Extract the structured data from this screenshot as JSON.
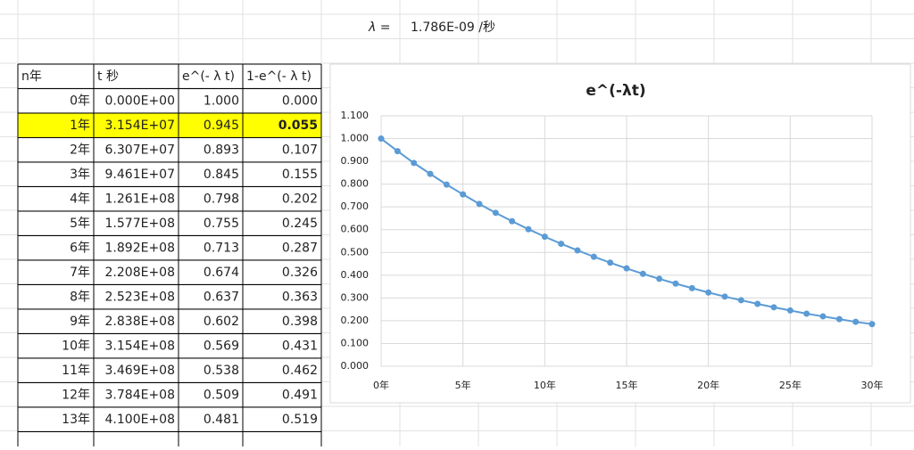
{
  "cells": {
    "lambda_label": "λ =",
    "lambda_value": "1.786E-09 /秒"
  },
  "table": {
    "columns": [
      "n年",
      "t 秒",
      "e^(- λ t)",
      "1-e^(- λ t)"
    ],
    "highlight_row": 1,
    "rows": [
      [
        "0年",
        "0.000E+00",
        "1.000",
        "0.000"
      ],
      [
        "1年",
        "3.154E+07",
        "0.945",
        "0.055"
      ],
      [
        "2年",
        "6.307E+07",
        "0.893",
        "0.107"
      ],
      [
        "3年",
        "9.461E+07",
        "0.845",
        "0.155"
      ],
      [
        "4年",
        "1.261E+08",
        "0.798",
        "0.202"
      ],
      [
        "5年",
        "1.577E+08",
        "0.755",
        "0.245"
      ],
      [
        "6年",
        "1.892E+08",
        "0.713",
        "0.287"
      ],
      [
        "7年",
        "2.208E+08",
        "0.674",
        "0.326"
      ],
      [
        "8年",
        "2.523E+08",
        "0.637",
        "0.363"
      ],
      [
        "9年",
        "2.838E+08",
        "0.602",
        "0.398"
      ],
      [
        "10年",
        "3.154E+08",
        "0.569",
        "0.431"
      ],
      [
        "11年",
        "3.469E+08",
        "0.538",
        "0.462"
      ],
      [
        "12年",
        "3.784E+08",
        "0.509",
        "0.491"
      ],
      [
        "13年",
        "4.100E+08",
        "0.481",
        "0.519"
      ]
    ]
  },
  "chart_data": {
    "type": "line",
    "title": "e^(-λt)",
    "color": "#5b9bd5",
    "grid": true,
    "x": [
      0,
      1,
      2,
      3,
      4,
      5,
      6,
      7,
      8,
      9,
      10,
      11,
      12,
      13,
      14,
      15,
      16,
      17,
      18,
      19,
      20,
      21,
      22,
      23,
      24,
      25,
      26,
      27,
      28,
      29,
      30
    ],
    "values": [
      1.0,
      0.945,
      0.893,
      0.845,
      0.798,
      0.755,
      0.713,
      0.674,
      0.637,
      0.602,
      0.569,
      0.538,
      0.509,
      0.481,
      0.455,
      0.43,
      0.406,
      0.384,
      0.363,
      0.343,
      0.324,
      0.306,
      0.29,
      0.274,
      0.259,
      0.245,
      0.231,
      0.219,
      0.207,
      0.195,
      0.185
    ],
    "xlim": [
      0,
      30
    ],
    "xticks": [
      {
        "value": 0,
        "label": "0年"
      },
      {
        "value": 5,
        "label": "5年"
      },
      {
        "value": 10,
        "label": "10年"
      },
      {
        "value": 15,
        "label": "15年"
      },
      {
        "value": 20,
        "label": "20年"
      },
      {
        "value": 25,
        "label": "25年"
      },
      {
        "value": 30,
        "label": "30年"
      }
    ],
    "ylim": [
      0,
      1.1
    ],
    "yticks": [
      {
        "value": 0,
        "label": "0.000"
      },
      {
        "value": 0.1,
        "label": "0.100"
      },
      {
        "value": 0.2,
        "label": "0.200"
      },
      {
        "value": 0.3,
        "label": "0.300"
      },
      {
        "value": 0.4,
        "label": "0.400"
      },
      {
        "value": 0.5,
        "label": "0.500"
      },
      {
        "value": 0.6,
        "label": "0.600"
      },
      {
        "value": 0.7,
        "label": "0.700"
      },
      {
        "value": 0.8,
        "label": "0.800"
      },
      {
        "value": 0.9,
        "label": "0.900"
      },
      {
        "value": 1.0,
        "label": "1.000"
      },
      {
        "value": 1.1,
        "label": "1.100"
      }
    ]
  }
}
